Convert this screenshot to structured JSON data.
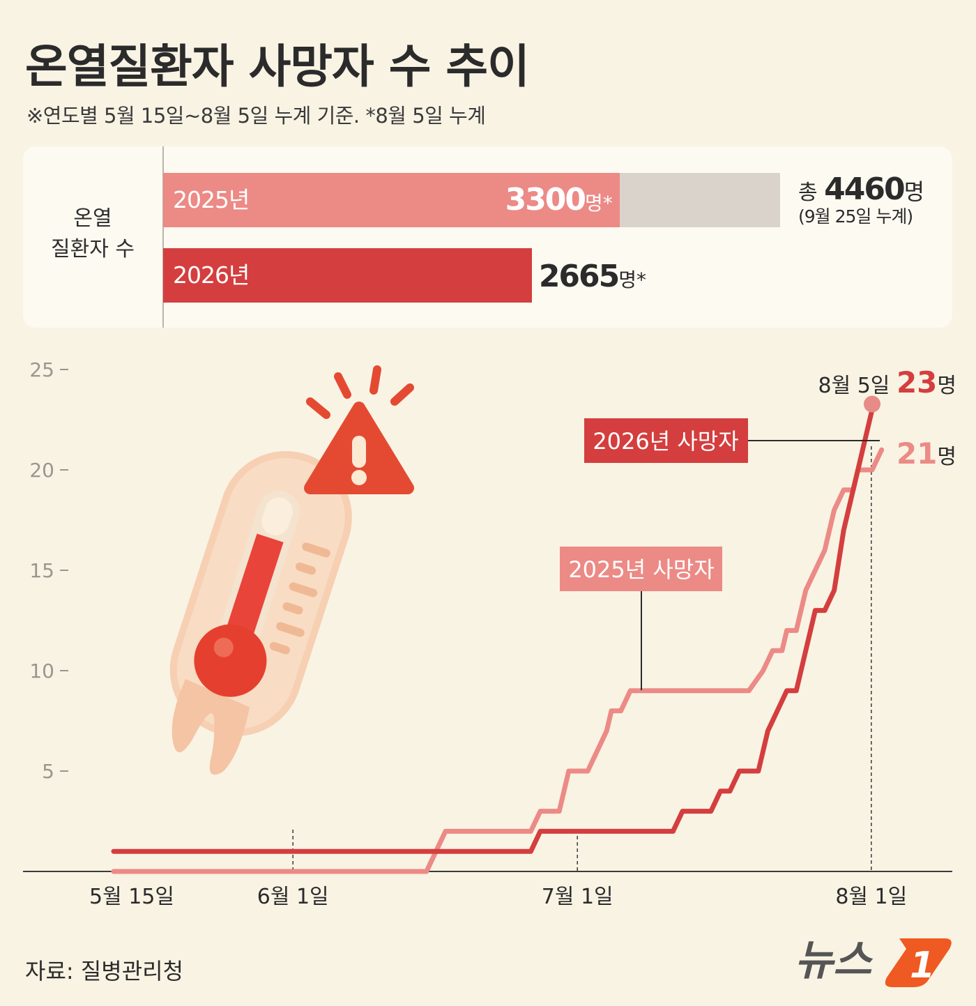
{
  "header": {
    "title": "온열질환자 사망자 수 추이",
    "subtitle": "※연도별 5월 15일~8월 5일 누계 기준.  *8월 5일 누계"
  },
  "patients": {
    "row_label_line1": "온열",
    "row_label_line2": "질환자 수",
    "bars": [
      {
        "year": "2025년",
        "value": 3300,
        "value_text": "3300",
        "unit": "명*",
        "color": "#ec8a86"
      },
      {
        "year": "2026년",
        "value": 2665,
        "value_text": "2665",
        "unit": "명*",
        "color": "#d43e3e"
      }
    ],
    "total": {
      "prefix": "총 ",
      "value": 4460,
      "value_text": "4460",
      "unit": "명",
      "note": "(9월 25일 누계)",
      "color": "#d9d3cc"
    }
  },
  "chart_data": {
    "type": "line",
    "yticks": [
      "25",
      "20",
      "15",
      "10",
      "5"
    ],
    "ylim": [
      0,
      25
    ],
    "xticks": [
      "5월 15일",
      "6월 1일",
      "7월 1일",
      "8월 1일"
    ],
    "xtick_days": [
      0,
      17,
      47,
      78
    ],
    "series": [
      {
        "name": "2025년 사망자",
        "color": "#ec8a86",
        "points": [
          [
            0,
            0
          ],
          [
            33,
            0
          ],
          [
            35,
            2
          ],
          [
            44,
            2
          ],
          [
            45,
            3
          ],
          [
            47,
            3
          ],
          [
            48,
            5
          ],
          [
            50,
            5
          ],
          [
            51,
            6
          ],
          [
            52,
            7
          ],
          [
            52.5,
            8
          ],
          [
            53.5,
            8
          ],
          [
            54.5,
            9
          ],
          [
            67,
            9
          ],
          [
            68.5,
            10
          ],
          [
            69.5,
            11
          ],
          [
            70.5,
            11
          ],
          [
            71,
            12
          ],
          [
            72,
            12
          ],
          [
            73,
            14
          ],
          [
            74,
            15
          ],
          [
            75,
            16
          ],
          [
            76,
            18
          ],
          [
            77,
            19
          ],
          [
            78,
            19
          ],
          [
            78.5,
            20
          ],
          [
            80,
            20
          ],
          [
            80,
            20
          ],
          [
            81,
            21
          ]
        ]
      },
      {
        "name": "2026년 사망자",
        "color": "#d43e3e",
        "points": [
          [
            0,
            1
          ],
          [
            44,
            1
          ],
          [
            45,
            2
          ],
          [
            59,
            2
          ],
          [
            60,
            3
          ],
          [
            63,
            3
          ],
          [
            64,
            4
          ],
          [
            65,
            4
          ],
          [
            66,
            5
          ],
          [
            68,
            5
          ],
          [
            69,
            7
          ],
          [
            70,
            8
          ],
          [
            71,
            9
          ],
          [
            72,
            9
          ],
          [
            73,
            11
          ],
          [
            74,
            13
          ],
          [
            75,
            13
          ],
          [
            76,
            14
          ],
          [
            77,
            17
          ],
          [
            78,
            19
          ],
          [
            79,
            21
          ],
          [
            80,
            23
          ]
        ]
      }
    ],
    "annotations": {
      "end_2026_date": "8월 5일",
      "end_2026_value": "23",
      "end_2026_unit": "명",
      "end_2025_value": "21",
      "end_2025_unit": "명"
    }
  },
  "footer": {
    "source": "자료: 질병관리청",
    "logo_text": "뉴스",
    "logo_mark": "1"
  }
}
